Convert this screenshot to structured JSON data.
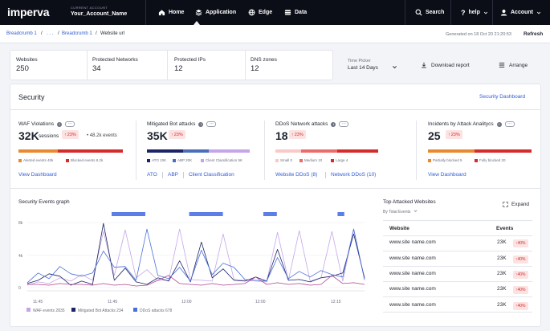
{
  "topbar": {
    "logo": "imperva",
    "account_label": "CURRENT ACCOUNT",
    "account_name": "Your_Account_Name",
    "nav": [
      {
        "label": "Home",
        "icon": "home-icon"
      },
      {
        "label": "Application",
        "icon": "application-icon"
      },
      {
        "label": "Edge",
        "icon": "edge-icon"
      },
      {
        "label": "Data",
        "icon": "data-icon"
      }
    ],
    "search_label": "Search",
    "help_label": "help",
    "account_label_menu": "Account"
  },
  "breadcrumb": {
    "items": [
      "Breadcrumb 1",
      "/",
      ". . .",
      "/",
      "Breadcrumb 1",
      "/",
      "Website url"
    ],
    "generated": "Generated on 18 Oct 20 21:20:53",
    "refresh": "Refresh"
  },
  "kpis": [
    {
      "label": "Websites",
      "value": "250"
    },
    {
      "label": "Protected Networks",
      "value": "34"
    },
    {
      "label": "Protected IPs",
      "value": "12"
    },
    {
      "label": "DNS zones",
      "value": "12"
    }
  ],
  "time_picker": {
    "label": "Time Picker",
    "value": "Last 14 Days"
  },
  "actions": {
    "download": "Download report",
    "arrange": "Arrange"
  },
  "security": {
    "title": "Security",
    "dashboard_link": "Security Dashboard",
    "metrics": [
      {
        "title": "WAF Violations",
        "value": "32K",
        "unit": "sessions",
        "badge": "23%",
        "extra": "• 48.2k events",
        "bar": [
          {
            "color": "#e8892f",
            "share": 0.38
          },
          {
            "color": "#d42b2b",
            "share": 0.62
          }
        ],
        "legend": [
          {
            "color": "#e8892f",
            "text": "Alerted events 40k"
          },
          {
            "color": "#d42b2b",
            "text": "Blocked events 8.2k"
          }
        ],
        "links": [
          "View Dashboard"
        ]
      },
      {
        "title": "Mitigated Bot attacks",
        "value": "35K",
        "badge": "23%",
        "bar": [
          {
            "color": "#1c2466",
            "share": 0.35
          },
          {
            "color": "#4a6fb8",
            "share": 0.25
          },
          {
            "color": "#c4a6e8",
            "share": 0.4
          }
        ],
        "legend": [
          {
            "color": "#1c2466",
            "text": "ATO 10K"
          },
          {
            "color": "#4a6fb8",
            "text": "ABP 20K"
          },
          {
            "color": "#c4a6e8",
            "text": "Client Classification 5K"
          }
        ],
        "links": [
          "ATO",
          "ABP",
          "Client Classification"
        ]
      },
      {
        "title": "DDoS Network attacks",
        "value": "18",
        "badge": "23%",
        "bar": [
          {
            "color": "#f9c9c9",
            "share": 0.25
          },
          {
            "color": "#ee6b6b",
            "share": 0.35
          },
          {
            "color": "#d42b2b",
            "share": 0.4
          }
        ],
        "legend": [
          {
            "color": "#f9c9c9",
            "text": "Small 0"
          },
          {
            "color": "#ee6b6b",
            "text": "Medium 10"
          },
          {
            "color": "#d42b2b",
            "text": "Large 4"
          }
        ],
        "links": [
          "Website DDoS (8)",
          "Network DDoS (10)"
        ]
      },
      {
        "title": "Incidents by Attack Analitycs",
        "value": "25",
        "badge": "23%",
        "bar": [
          {
            "color": "#e8892f",
            "share": 0.45
          },
          {
            "color": "#d42b2b",
            "share": 0.55
          }
        ],
        "legend": [
          {
            "color": "#e8892f",
            "text": "Partially blocked 5"
          },
          {
            "color": "#d42b2b",
            "text": "Fully blocked 20"
          }
        ],
        "links": [
          "View Dashboard"
        ]
      }
    ]
  },
  "graph": {
    "title": "Security Events graph",
    "y_ticks": [
      "8k",
      "4k",
      "0"
    ],
    "x_ticks": [
      "11:45",
      "11:45",
      "12:00",
      "12:00",
      "12:15"
    ],
    "legend": [
      {
        "color": "#c4a6e8",
        "text": "WAF events 2835"
      },
      {
        "color": "#1c2466",
        "text": "Mitigated Bot Attacks 234"
      },
      {
        "color": "#4a6fdc",
        "text": "DDoS attacks 678"
      }
    ]
  },
  "chart_data": {
    "type": "line",
    "title": "Security Events graph",
    "ylim": [
      0,
      8000
    ],
    "y_ticks": [
      0,
      4000,
      8000
    ],
    "x_ticks": [
      "11:45",
      "11:45",
      "12:00",
      "12:00",
      "12:15"
    ],
    "ddos_markers": [
      [
        0.25,
        0.35
      ],
      [
        0.48,
        0.58
      ],
      [
        0.7,
        0.74
      ],
      [
        0.92,
        0.94
      ]
    ],
    "series": [
      {
        "name": "WAF events 2835",
        "color": "#c4a6e8",
        "values": [
          300,
          700,
          500,
          1200,
          800,
          1600,
          900,
          6900,
          1500,
          7100,
          1200,
          2200,
          900,
          900,
          7200,
          1000,
          900,
          800,
          6600,
          1000,
          900,
          800,
          700,
          6800,
          900,
          7000,
          800,
          1200,
          6900,
          800,
          7200,
          900
        ]
      },
      {
        "name": "Mitigated Bot Attacks 234",
        "color": "#1c2466",
        "values": [
          500,
          900,
          1700,
          1400,
          300,
          800,
          400,
          7900,
          900,
          2400,
          700,
          400,
          1200,
          800,
          3300,
          700,
          5600,
          1200,
          2300,
          900,
          800,
          1300,
          800,
          4700,
          900,
          1000,
          700,
          1200,
          1400,
          1800,
          6600,
          1200
        ]
      },
      {
        "name": "DDoS attacks 678",
        "color": "#4a6fdc",
        "values": [
          600,
          1800,
          1100,
          2600,
          1700,
          1400,
          1800,
          4500,
          2500,
          2600,
          900,
          7200,
          1500,
          1100,
          2500,
          800,
          4600,
          1600,
          3000,
          2500,
          1000,
          900,
          800,
          3700,
          1100,
          2000,
          1300,
          2100,
          1600,
          1300,
          7200,
          1000
        ]
      },
      {
        "name": "Events",
        "color": "#b0408f",
        "values": [
          400,
          400,
          300,
          500,
          400,
          400,
          300,
          500,
          300,
          400,
          200,
          300,
          900,
          1500,
          500,
          400,
          300,
          500,
          300,
          400,
          500,
          1300,
          400,
          600,
          400,
          500,
          300,
          400,
          1500,
          500,
          600,
          400
        ]
      }
    ]
  },
  "top_sites": {
    "title": "Top Attacked Websites",
    "subtitle": "By Total Events",
    "expand": "Expand",
    "col_site": "Website",
    "col_events": "Events",
    "rows": [
      {
        "site": "www.site name.com",
        "events": "23K",
        "badge": "40%"
      },
      {
        "site": "www.site name.com",
        "events": "23K",
        "badge": "40%"
      },
      {
        "site": "www.site name.com",
        "events": "23K",
        "badge": "40%"
      },
      {
        "site": "www.site name.com",
        "events": "23K",
        "badge": "40%"
      },
      {
        "site": "www.site name.com",
        "events": "23K",
        "badge": "40%"
      }
    ]
  }
}
